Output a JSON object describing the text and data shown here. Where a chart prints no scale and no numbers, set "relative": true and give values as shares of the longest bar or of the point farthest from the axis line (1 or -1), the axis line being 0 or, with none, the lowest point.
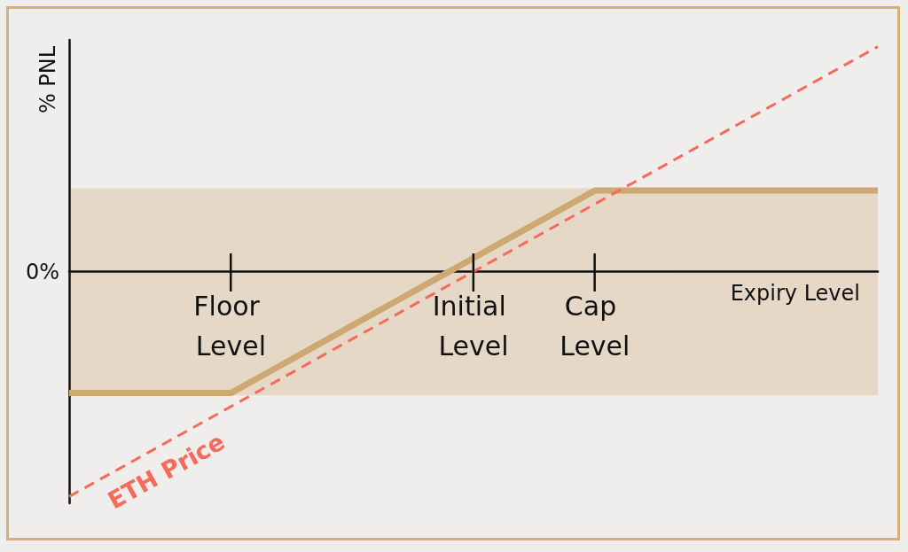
{
  "chart_data": {
    "type": "line",
    "relative": true,
    "ylabel": "% PNL",
    "xlabel": "Expiry Level",
    "categories": [
      null,
      null,
      null,
      null,
      "Floor Level",
      null,
      null,
      null,
      null,
      null,
      "Initial Level",
      null,
      null,
      "Cap Level",
      null,
      null,
      null,
      null,
      null,
      null,
      null
    ],
    "series": [
      {
        "color": "#cda873",
        "line_style": "solid",
        "values": [
          -0.54,
          -0.54,
          -0.54,
          -0.54,
          -0.54,
          -0.44,
          -0.34,
          -0.24,
          -0.14,
          -0.04,
          0.06,
          0.16,
          0.26,
          0.36,
          0.36,
          0.36,
          0.36,
          0.36,
          0.36,
          0.36,
          0.36
        ]
      },
      {
        "name": "ETH Price",
        "color": "#f56b5a",
        "line_style": "dashed",
        "values": [
          -1,
          -0.9,
          -0.8,
          -0.7,
          -0.6,
          -0.5,
          -0.4,
          -0.3,
          -0.2,
          -0.1,
          0,
          0.1,
          0.2,
          0.3,
          0.4,
          0.5,
          0.6,
          0.7,
          0.8,
          0.9,
          1
        ]
      }
    ],
    "bands": [
      {
        "axis": "y",
        "from": -0.55,
        "to": 0.37,
        "color": "#e5d8c6"
      }
    ],
    "annotations": [
      "0%"
    ]
  }
}
